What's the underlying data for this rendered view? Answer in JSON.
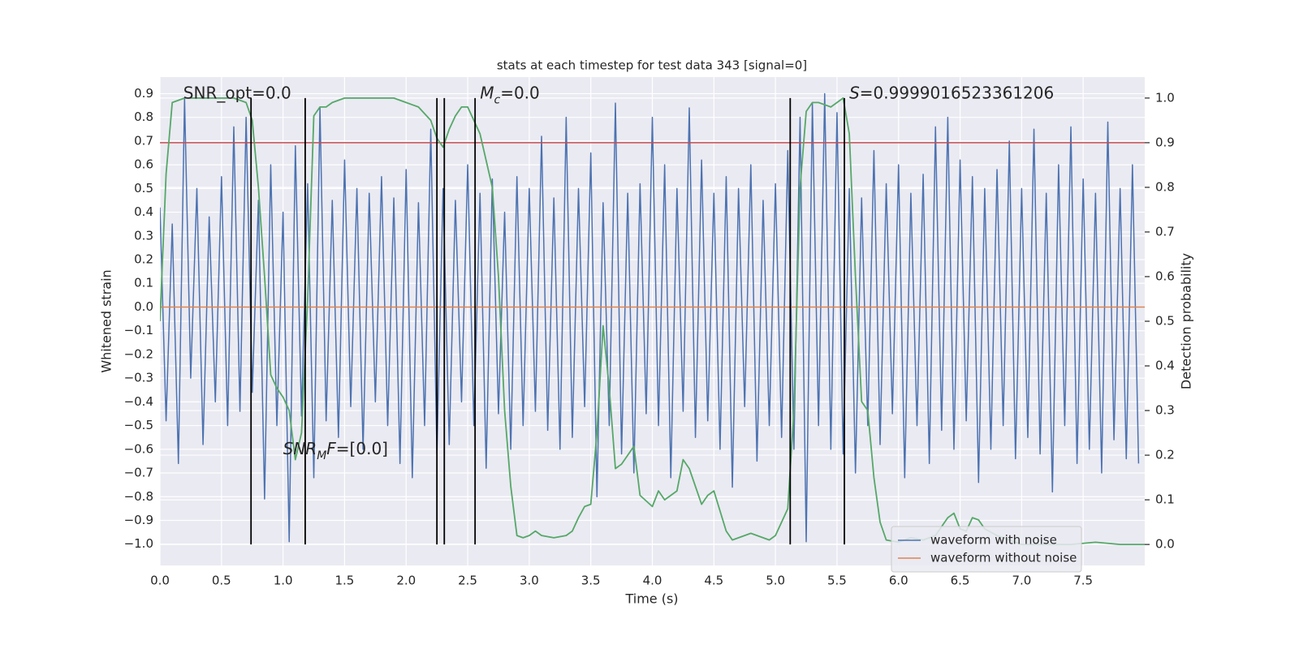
{
  "chart_data": {
    "type": "line",
    "title": "stats at each timestep for test data 343 [signal=0]",
    "xlabel": "Time (s)",
    "ylabel": "Whitened strain",
    "y2label": "Detection probability",
    "grid": true,
    "legend": "lower right",
    "plot_background": "#eaeaf2",
    "xlim": [
      0,
      8
    ],
    "ylim": [
      -1.09,
      0.97
    ],
    "y2lim": [
      -0.047,
      1.047
    ],
    "xticks": [
      {
        "value": 0,
        "label": "0.0"
      },
      0.5,
      {
        "value": 1,
        "label": "1.0"
      },
      1.5,
      {
        "value": 2,
        "label": "2.0"
      },
      2.5,
      {
        "value": 3,
        "label": "3.0"
      },
      3.5,
      {
        "value": 4,
        "label": "4.0"
      },
      4.5,
      {
        "value": 5,
        "label": "5.0"
      },
      5.5,
      {
        "value": 6,
        "label": "6.0"
      },
      6.5,
      {
        "value": 7,
        "label": "7.0"
      },
      7.5
    ],
    "yticks": [
      0.9,
      0.8,
      0.7,
      0.6,
      0.5,
      0.4,
      0.3,
      0.2,
      0.1,
      {
        "value": 0,
        "label": "0.0"
      },
      {
        "value": -0.1,
        "label": "−0.1"
      },
      {
        "value": -0.2,
        "label": "−0.2"
      },
      {
        "value": -0.3,
        "label": "−0.3"
      },
      {
        "value": -0.4,
        "label": "−0.4"
      },
      {
        "value": -0.5,
        "label": "−0.5"
      },
      {
        "value": -0.6,
        "label": "−0.6"
      },
      {
        "value": -0.7,
        "label": "−0.7"
      },
      {
        "value": -0.8,
        "label": "−0.8"
      },
      {
        "value": -0.9,
        "label": "−0.9"
      },
      {
        "value": -1,
        "label": "−1.0"
      }
    ],
    "y2ticks": [
      {
        "value": 0,
        "label": "0.0"
      },
      0.1,
      0.2,
      0.3,
      0.4,
      0.5,
      0.6,
      0.7,
      0.8,
      0.9,
      {
        "value": 1,
        "label": "1.0"
      }
    ],
    "series": [
      {
        "name": "waveform with noise",
        "color": "#4c72b0",
        "x": [
          0,
          0.05,
          0.1,
          0.15,
          0.2,
          0.25,
          0.3,
          0.35,
          0.4,
          0.45,
          0.5,
          0.55,
          0.6,
          0.65,
          0.7,
          0.75,
          0.8,
          0.85,
          0.9,
          0.95,
          1,
          1.05,
          1.1,
          1.15,
          1.2,
          1.25,
          1.3,
          1.35,
          1.4,
          1.45,
          1.5,
          1.55,
          1.6,
          1.65,
          1.7,
          1.75,
          1.8,
          1.85,
          1.9,
          1.95,
          2,
          2.05,
          2.1,
          2.15,
          2.2,
          2.25,
          2.3,
          2.35,
          2.4,
          2.45,
          2.5,
          2.55,
          2.6,
          2.65,
          2.7,
          2.75,
          2.8,
          2.85,
          2.9,
          2.95,
          3,
          3.05,
          3.1,
          3.15,
          3.2,
          3.25,
          3.3,
          3.35,
          3.4,
          3.45,
          3.5,
          3.55,
          3.6,
          3.65,
          3.7,
          3.75,
          3.8,
          3.85,
          3.9,
          3.95,
          4,
          4.05,
          4.1,
          4.15,
          4.2,
          4.25,
          4.3,
          4.35,
          4.4,
          4.45,
          4.5,
          4.55,
          4.6,
          4.65,
          4.7,
          4.75,
          4.8,
          4.85,
          4.9,
          4.95,
          5,
          5.05,
          5.1,
          5.15,
          5.2,
          5.25,
          5.3,
          5.35,
          5.4,
          5.45,
          5.5,
          5.55,
          5.6,
          5.65,
          5.7,
          5.75,
          5.8,
          5.85,
          5.9,
          5.95,
          6,
          6.05,
          6.1,
          6.15,
          6.2,
          6.25,
          6.3,
          6.35,
          6.4,
          6.45,
          6.5,
          6.55,
          6.6,
          6.65,
          6.7,
          6.75,
          6.8,
          6.85,
          6.9,
          6.95,
          7,
          7.05,
          7.1,
          7.15,
          7.2,
          7.25,
          7.3,
          7.35,
          7.4,
          7.45,
          7.5,
          7.55,
          7.6,
          7.65,
          7.7,
          7.75,
          7.8,
          7.85,
          7.9,
          7.95
        ],
        "values": [
          0.42,
          -0.48,
          0.35,
          -0.66,
          0.88,
          -0.3,
          0.5,
          -0.58,
          0.38,
          -0.4,
          0.55,
          -0.5,
          0.76,
          -0.44,
          0.8,
          -0.36,
          0.45,
          -0.81,
          0.6,
          -0.5,
          0.4,
          -0.99,
          0.68,
          -0.46,
          0.52,
          -0.72,
          0.84,
          -0.48,
          0.45,
          -0.55,
          0.62,
          -0.42,
          0.5,
          -0.6,
          0.48,
          -0.4,
          0.55,
          -0.5,
          0.46,
          -0.66,
          0.58,
          -0.72,
          0.44,
          -0.5,
          0.75,
          -0.62,
          0.5,
          -0.58,
          0.45,
          -0.4,
          0.6,
          -0.5,
          0.48,
          -0.68,
          0.54,
          -0.45,
          0.4,
          -0.6,
          0.55,
          -0.5,
          0.5,
          -0.44,
          0.72,
          -0.52,
          0.46,
          -0.6,
          0.8,
          -0.55,
          0.5,
          -0.42,
          0.65,
          -0.8,
          0.44,
          -0.5,
          0.86,
          -0.62,
          0.48,
          -0.7,
          0.52,
          -0.45,
          0.8,
          -0.5,
          0.6,
          -0.72,
          0.5,
          -0.44,
          0.84,
          -0.55,
          0.62,
          -0.48,
          0.48,
          -0.6,
          0.55,
          -0.76,
          0.5,
          -0.42,
          0.6,
          -0.65,
          0.45,
          -0.5,
          0.52,
          -0.55,
          0.66,
          -0.6,
          0.8,
          -0.99,
          0.86,
          -0.5,
          0.9,
          -0.6,
          0.82,
          -0.62,
          0.5,
          -0.7,
          0.46,
          -0.5,
          0.66,
          -0.58,
          0.52,
          -0.45,
          0.6,
          -0.72,
          0.48,
          -0.5,
          0.56,
          -0.66,
          0.76,
          -0.52,
          0.8,
          -0.6,
          0.62,
          -0.48,
          0.55,
          -0.74,
          0.5,
          -0.6,
          0.58,
          -0.5,
          0.7,
          -0.64,
          0.5,
          -0.55,
          0.75,
          -0.62,
          0.48,
          -0.78,
          0.6,
          -0.5,
          0.76,
          -0.66,
          0.54,
          -0.6,
          0.48,
          -0.7,
          0.78,
          -0.56,
          0.5,
          -0.64,
          0.6,
          -0.66
        ]
      },
      {
        "name": "waveform without noise",
        "color": "#dd8452",
        "x": [
          0,
          8
        ],
        "values": [
          0,
          0
        ]
      }
    ],
    "probability": {
      "color": "#55a868",
      "axis": "y2",
      "x": [
        0,
        0.05,
        0.1,
        0.2,
        0.3,
        0.4,
        0.5,
        0.6,
        0.7,
        0.75,
        0.8,
        0.85,
        0.9,
        0.95,
        1,
        1.05,
        1.1,
        1.15,
        1.2,
        1.25,
        1.3,
        1.35,
        1.4,
        1.5,
        1.6,
        1.7,
        1.8,
        1.9,
        2,
        2.1,
        2.2,
        2.25,
        2.3,
        2.35,
        2.4,
        2.45,
        2.5,
        2.6,
        2.7,
        2.75,
        2.8,
        2.85,
        2.9,
        2.95,
        3,
        3.05,
        3.1,
        3.2,
        3.3,
        3.35,
        3.4,
        3.45,
        3.5,
        3.55,
        3.6,
        3.65,
        3.7,
        3.75,
        3.8,
        3.85,
        3.9,
        4,
        4.05,
        4.1,
        4.2,
        4.25,
        4.3,
        4.35,
        4.4,
        4.45,
        4.5,
        4.6,
        4.65,
        4.7,
        4.8,
        4.9,
        4.95,
        5,
        5.05,
        5.1,
        5.15,
        5.2,
        5.25,
        5.3,
        5.35,
        5.45,
        5.5,
        5.55,
        5.6,
        5.65,
        5.7,
        5.75,
        5.8,
        5.85,
        5.9,
        6,
        6.1,
        6.2,
        6.3,
        6.4,
        6.45,
        6.5,
        6.55,
        6.6,
        6.65,
        6.7,
        6.8,
        7,
        7.2,
        7.4,
        7.6,
        7.8,
        8
      ],
      "values": [
        0.5,
        0.83,
        0.99,
        1,
        1,
        1,
        1,
        1,
        0.99,
        0.95,
        0.8,
        0.6,
        0.38,
        0.35,
        0.33,
        0.3,
        0.19,
        0.25,
        0.55,
        0.96,
        0.98,
        0.98,
        0.99,
        1,
        1,
        1,
        1,
        1,
        0.99,
        0.98,
        0.95,
        0.91,
        0.89,
        0.93,
        0.96,
        0.98,
        0.98,
        0.92,
        0.8,
        0.6,
        0.3,
        0.13,
        0.02,
        0.015,
        0.02,
        0.03,
        0.02,
        0.015,
        0.02,
        0.03,
        0.06,
        0.085,
        0.09,
        0.25,
        0.49,
        0.35,
        0.17,
        0.18,
        0.2,
        0.22,
        0.11,
        0.085,
        0.12,
        0.1,
        0.12,
        0.19,
        0.17,
        0.13,
        0.09,
        0.11,
        0.12,
        0.03,
        0.01,
        0.015,
        0.025,
        0.015,
        0.01,
        0.02,
        0.05,
        0.08,
        0.3,
        0.8,
        0.97,
        0.99,
        0.99,
        0.98,
        0.99,
        1,
        0.92,
        0.6,
        0.32,
        0.3,
        0.15,
        0.05,
        0.01,
        0.005,
        0.015,
        0.01,
        0.02,
        0.06,
        0.07,
        0.035,
        0.03,
        0.06,
        0.055,
        0.035,
        0.02,
        0,
        0,
        0,
        0.005,
        0,
        0
      ]
    },
    "threshold": {
      "color": "#c44e52",
      "axis": "y2",
      "value": 0.9
    },
    "vlines": {
      "color": "#000000",
      "axis": "y2",
      "x": [
        0.74,
        1.18,
        2.25,
        2.31,
        2.56,
        5.12,
        5.56
      ],
      "ymin": 0,
      "ymax": 1
    },
    "annotations": [
      {
        "x": 0.19,
        "y": 0.9,
        "parts": [
          {
            "text": "SNR_opt=0.0"
          }
        ]
      },
      {
        "x": 2.6,
        "y": 0.9,
        "parts": [
          {
            "text": "M",
            "italic": true
          },
          {
            "text": "c",
            "italic": true,
            "sub": true
          },
          {
            "text": "=0.0"
          }
        ]
      },
      {
        "x": 5.6,
        "y": 0.9,
        "parts": [
          {
            "text": "S",
            "italic": true
          },
          {
            "text": "=0.9999016523361206"
          }
        ]
      },
      {
        "x": 1.0,
        "y": -0.6,
        "parts": [
          {
            "text": "SNR",
            "italic": true
          },
          {
            "text": "M",
            "italic": true,
            "sub": true
          },
          {
            "text": "F",
            "italic": true
          },
          {
            "text": "=[0.0]"
          }
        ]
      }
    ]
  }
}
